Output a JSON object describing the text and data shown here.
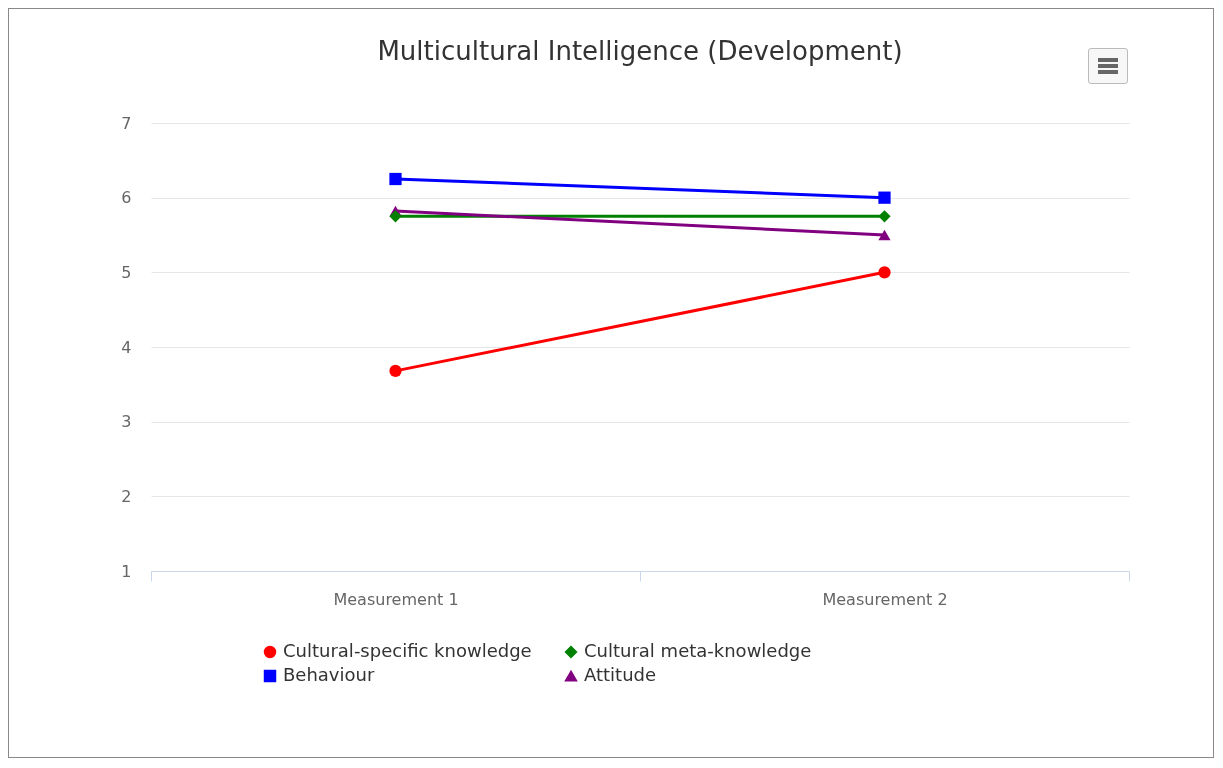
{
  "chart_data": {
    "type": "line",
    "title": "Multicultural Intelligence (Development)",
    "categories": [
      "Measurement 1",
      "Measurement 2"
    ],
    "series": [
      {
        "name": "Cultural-specific knowledge",
        "color": "#ff0000",
        "marker": "circle",
        "values": [
          3.68,
          5.0
        ]
      },
      {
        "name": "Cultural meta-knowledge",
        "color": "#008000",
        "marker": "diamond",
        "values": [
          5.75,
          5.75
        ]
      },
      {
        "name": "Behaviour",
        "color": "#0000ff",
        "marker": "square",
        "values": [
          6.25,
          6.0
        ]
      },
      {
        "name": "Attitude",
        "color": "#800080",
        "marker": "triangle",
        "values": [
          5.82,
          5.5
        ]
      }
    ],
    "ylim": [
      1,
      7
    ],
    "yticks": [
      1,
      2,
      3,
      4,
      5,
      6,
      7
    ],
    "grid": "y",
    "legend": "bottom",
    "line_style": "solid"
  }
}
